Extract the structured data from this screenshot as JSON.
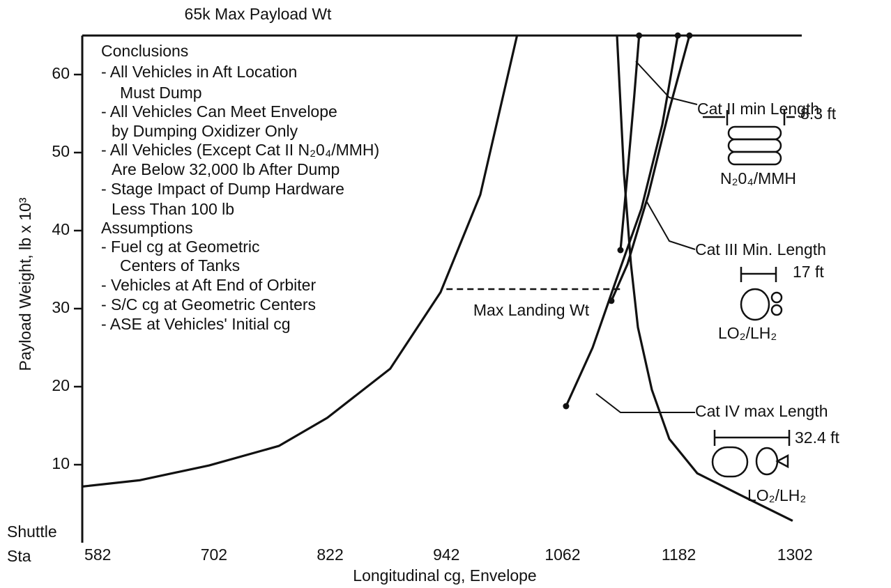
{
  "chart_data": {
    "type": "line",
    "xlabel": "Longitudinal cg, Envelope",
    "ylabel": "Payload Weight, lb x 10³",
    "x_axis_prefix": [
      "Shuttle",
      "Sta"
    ],
    "xlim": [
      566,
      1309
    ],
    "ylim": [
      0,
      65
    ],
    "xticks": [
      582,
      702,
      822,
      942,
      1062,
      1182,
      1302
    ],
    "yticks": [
      10,
      20,
      30,
      40,
      50,
      60
    ],
    "series": [
      {
        "color": "#111111",
        "marker_ends": false,
        "x": [
          566,
          625,
          697,
          769,
          819,
          884,
          936,
          977,
          1015
        ],
        "values": [
          7.2,
          8,
          9.9,
          12.4,
          16,
          22.3,
          32.1,
          44.6,
          65
        ]
      },
      {
        "color": "#111111",
        "marker_ends": false,
        "x": [
          1118.2,
          1125.4,
          1132.6,
          1139.8,
          1154.2,
          1172.2,
          1201,
          1244.2,
          1299.6
        ],
        "values": [
          65,
          47.3,
          35.7,
          27.6,
          19.6,
          13.3,
          8.9,
          6.2,
          2.8
        ]
      },
      {
        "color": "#111111",
        "marker_ends": true,
        "x": [
          1065.6,
          1093,
          1118,
          1143.4,
          1165,
          1181
        ],
        "values": [
          17.5,
          25,
          33.9,
          42.8,
          53.6,
          65
        ]
      },
      {
        "color": "#111111",
        "marker_ends": true,
        "x": [
          1112.4,
          1129,
          1150.6,
          1172,
          1193
        ],
        "values": [
          31,
          35.7,
          44.6,
          55.4,
          65
        ]
      },
      {
        "color": "#111111",
        "marker_ends": true,
        "x": [
          1121.8,
          1129,
          1136,
          1141
        ],
        "values": [
          37.5,
          47.3,
          57.2,
          65
        ]
      }
    ],
    "reference_lines": [
      {
        "y": 65,
        "x": [
          566,
          1309
        ],
        "label": "65k Max Payload Wt",
        "dashed": false
      },
      {
        "y": 32.5,
        "x": [
          942,
          1122
        ],
        "label": "Max Landing Wt",
        "dashed": true
      }
    ],
    "notes": [
      "Conclusions",
      "- All Vehicles in Aft Location",
      "Must Dump",
      "- All Vehicles Can Meet Envelope",
      "by Dumping Oxidizer Only",
      "- All Vehicles (Except Cat II N₂0₄/MMH)",
      "Are Below 32,000 lb After Dump",
      "- Stage Impact of Dump Hardware",
      "Less Than 100 lb",
      "Assumptions",
      "- Fuel cg at Geometric",
      "Centers of Tanks",
      "- Vehicles at Aft End of Orbiter",
      "- S/C cg at Geometric Centers",
      "- ASE at Vehicles' Initial cg"
    ],
    "callouts": [
      {
        "title": "Cat II min Length",
        "length": "8.3 ft",
        "propellant": "N₂0₄/MMH"
      },
      {
        "title": "Cat III Min. Length",
        "length": "17 ft",
        "propellant": "LO₂/LH₂"
      },
      {
        "title": "Cat IV max Length",
        "length": "32.4 ft",
        "propellant": "LO₂/LH₂"
      }
    ]
  }
}
